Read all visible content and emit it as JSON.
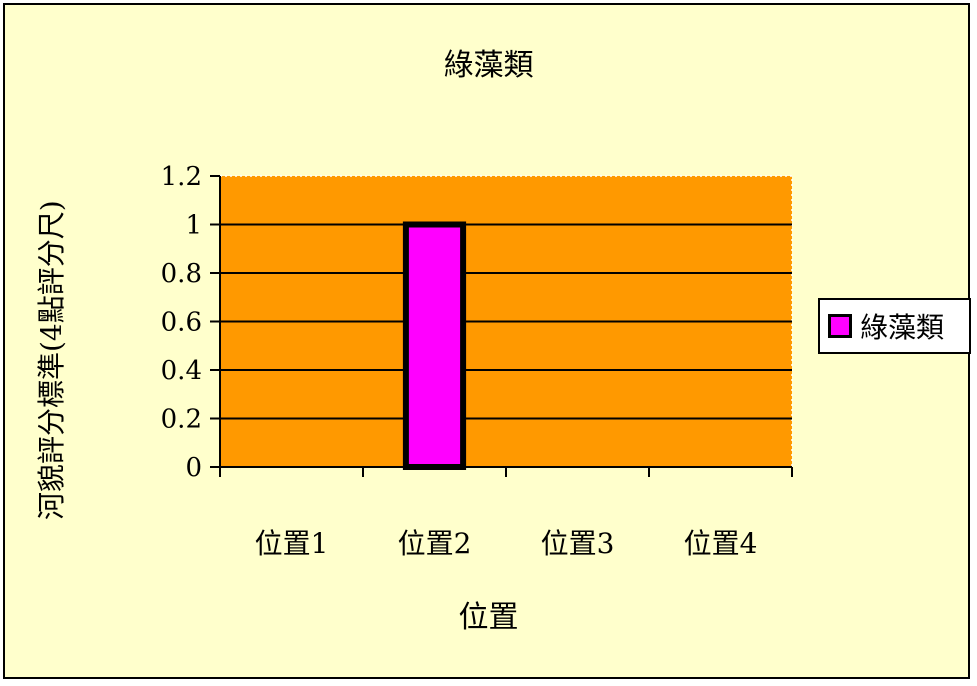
{
  "chart_data": {
    "type": "bar",
    "title": "綠藻類",
    "xlabel": "位置",
    "ylabel": "河貌評分標準(4點評分尺)",
    "categories": [
      "位置1",
      "位置2",
      "位置3",
      "位置4"
    ],
    "series": [
      {
        "name": "綠藻類",
        "values": [
          0,
          1,
          0,
          0
        ],
        "color": "#ff00ff"
      }
    ],
    "ylim": [
      0,
      1.2
    ],
    "yticks": [
      "0",
      "0.2",
      "0.4",
      "0.6",
      "0.8",
      "1",
      "1.2"
    ],
    "grid": true,
    "legend_position": "right",
    "plot_background": "#ff9900"
  }
}
